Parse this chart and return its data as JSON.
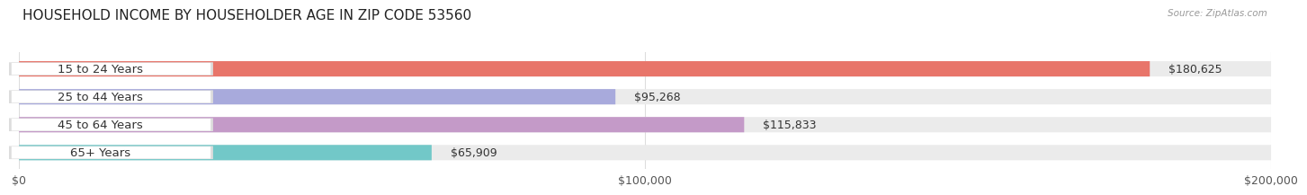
{
  "title": "HOUSEHOLD INCOME BY HOUSEHOLDER AGE IN ZIP CODE 53560",
  "source": "Source: ZipAtlas.com",
  "categories": [
    "15 to 24 Years",
    "25 to 44 Years",
    "45 to 64 Years",
    "65+ Years"
  ],
  "values": [
    180625,
    95268,
    115833,
    65909
  ],
  "bar_colors": [
    "#E8756A",
    "#A8AADC",
    "#C49AC8",
    "#72C8C8"
  ],
  "value_labels": [
    "$180,625",
    "$95,268",
    "$115,833",
    "$65,909"
  ],
  "xlim": [
    0,
    200000
  ],
  "xticks": [
    0,
    100000,
    200000
  ],
  "xtick_labels": [
    "$0",
    "$100,000",
    "$200,000"
  ],
  "bar_height": 0.55,
  "title_fontsize": 11,
  "tick_fontsize": 9,
  "label_fontsize": 9.5,
  "value_fontsize": 9,
  "background_color": "#FFFFFF",
  "grid_color": "#DDDDDD",
  "bar_bg_color": "#EBEBEB"
}
